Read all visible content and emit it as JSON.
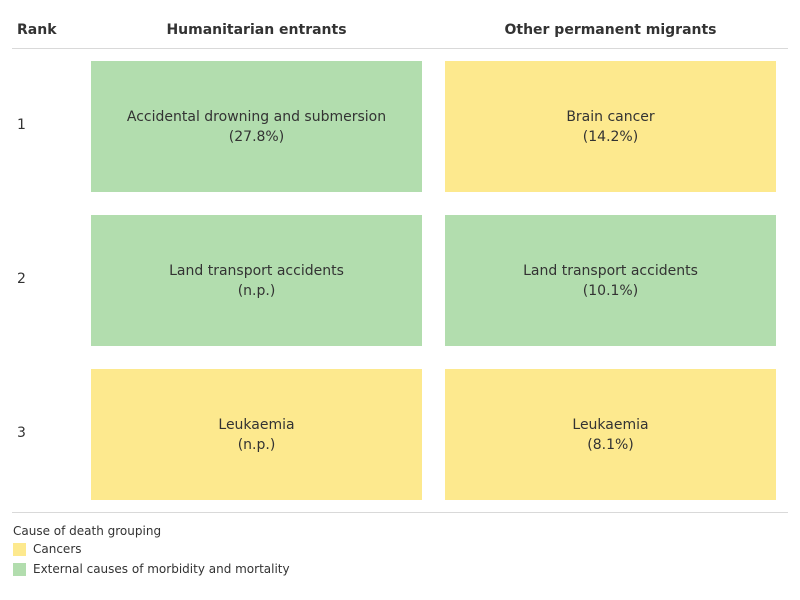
{
  "colors": {
    "cancers": "#fde98e",
    "external": "#b2ddae"
  },
  "chart_data": {
    "type": "table",
    "header": {
      "rank": "Rank",
      "columns": [
        "Humanitarian entrants",
        "Other permanent migrants"
      ]
    },
    "rows": [
      {
        "rank": "1",
        "cells": [
          {
            "cause": "Accidental drowning and submersion",
            "value": "(27.8%)",
            "group": "external"
          },
          {
            "cause": "Brain cancer",
            "value": "(14.2%)",
            "group": "cancers"
          }
        ]
      },
      {
        "rank": "2",
        "cells": [
          {
            "cause": "Land transport accidents",
            "value": "(n.p.)",
            "group": "external"
          },
          {
            "cause": "Land transport accidents",
            "value": "(10.1%)",
            "group": "external"
          }
        ]
      },
      {
        "rank": "3",
        "cells": [
          {
            "cause": "Leukaemia",
            "value": "(n.p.)",
            "group": "cancers"
          },
          {
            "cause": "Leukaemia",
            "value": "(8.1%)",
            "group": "cancers"
          }
        ]
      }
    ],
    "legend": {
      "title": "Cause of death grouping",
      "items": [
        {
          "label": "Cancers",
          "group": "cancers"
        },
        {
          "label": "External causes of morbidity and mortality",
          "group": "external"
        }
      ]
    }
  }
}
